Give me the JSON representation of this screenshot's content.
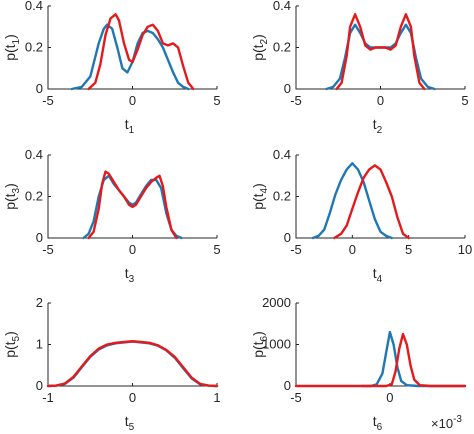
{
  "colors": {
    "blue": "#1f77b4",
    "red": "#e41a1c",
    "axis": "#262626"
  },
  "chart_data": [
    {
      "type": "line",
      "xlabel": "t",
      "xlabel_sub": "1",
      "ylabel": "p(t",
      "ylabel_sub": "1",
      "ylabel_close": ")",
      "xlim": [
        -5,
        5
      ],
      "ylim": [
        0,
        0.4
      ],
      "xticks": [
        "-5",
        "0",
        "5"
      ],
      "yticks": [
        "0",
        "0.2",
        "0.4"
      ],
      "grid": false,
      "series": [
        {
          "color": "blue",
          "x": [
            -3.6,
            -3,
            -2.5,
            -2,
            -1.7,
            -1.5,
            -1.2,
            -0.9,
            -0.6,
            -0.3,
            0,
            0.3,
            0.6,
            0.9,
            1.2,
            1.5,
            1.8,
            2.1,
            2.4,
            2.7,
            3,
            3.3
          ],
          "y": [
            0,
            0.01,
            0.06,
            0.22,
            0.29,
            0.31,
            0.29,
            0.2,
            0.1,
            0.08,
            0.13,
            0.22,
            0.27,
            0.28,
            0.27,
            0.24,
            0.2,
            0.14,
            0.08,
            0.03,
            0.01,
            0
          ]
        },
        {
          "color": "red",
          "x": [
            -2.6,
            -2.2,
            -1.9,
            -1.6,
            -1.3,
            -1,
            -0.8,
            -0.5,
            -0.2,
            0,
            0.3,
            0.6,
            0.9,
            1.2,
            1.5,
            1.8,
            2.1,
            2.4,
            2.7,
            3,
            3.3,
            3.6
          ],
          "y": [
            0,
            0.03,
            0.12,
            0.26,
            0.34,
            0.36,
            0.33,
            0.22,
            0.14,
            0.13,
            0.19,
            0.26,
            0.3,
            0.31,
            0.28,
            0.22,
            0.21,
            0.22,
            0.2,
            0.11,
            0.03,
            0
          ]
        }
      ]
    },
    {
      "type": "line",
      "xlabel": "t",
      "xlabel_sub": "2",
      "ylabel": "p(t",
      "ylabel_sub": "2",
      "ylabel_close": ")",
      "xlim": [
        -5,
        5
      ],
      "ylim": [
        0,
        0.4
      ],
      "xticks": [
        "-5",
        "0",
        "5"
      ],
      "yticks": [
        "0",
        "0.2",
        "0.4"
      ],
      "grid": false,
      "series": [
        {
          "color": "blue",
          "x": [
            -3.2,
            -2.8,
            -2.4,
            -2.1,
            -1.8,
            -1.5,
            -1.2,
            -0.9,
            -0.6,
            -0.3,
            0,
            0.3,
            0.6,
            0.9,
            1.2,
            1.5,
            1.8,
            2.1,
            2.4,
            2.8,
            3.2
          ],
          "y": [
            0,
            0.01,
            0.05,
            0.15,
            0.27,
            0.31,
            0.27,
            0.22,
            0.2,
            0.2,
            0.2,
            0.2,
            0.2,
            0.22,
            0.27,
            0.31,
            0.27,
            0.15,
            0.05,
            0.01,
            0
          ]
        },
        {
          "color": "red",
          "x": [
            -2.6,
            -2.3,
            -2,
            -1.8,
            -1.5,
            -1.2,
            -0.9,
            -0.6,
            -0.3,
            0,
            0.3,
            0.6,
            0.9,
            1.2,
            1.5,
            1.8,
            2,
            2.3,
            2.6
          ],
          "y": [
            0,
            0.03,
            0.16,
            0.3,
            0.36,
            0.3,
            0.21,
            0.19,
            0.2,
            0.2,
            0.2,
            0.19,
            0.21,
            0.3,
            0.36,
            0.3,
            0.16,
            0.03,
            0
          ]
        }
      ]
    },
    {
      "type": "line",
      "xlabel": "t",
      "xlabel_sub": "3",
      "ylabel": "p(t",
      "ylabel_sub": "3",
      "ylabel_close": ")",
      "xlim": [
        -5,
        5
      ],
      "ylim": [
        0,
        0.4
      ],
      "xticks": [
        "-5",
        "0",
        "5"
      ],
      "yticks": [
        "0",
        "0.2",
        "0.4"
      ],
      "grid": false,
      "series": [
        {
          "color": "blue",
          "x": [
            -2.9,
            -2.6,
            -2.3,
            -2,
            -1.7,
            -1.4,
            -1.1,
            -0.8,
            -0.5,
            -0.2,
            0,
            0.2,
            0.5,
            0.8,
            1.1,
            1.4,
            1.7,
            2,
            2.3,
            2.6,
            2.9
          ],
          "y": [
            0,
            0.02,
            0.08,
            0.2,
            0.28,
            0.3,
            0.26,
            0.23,
            0.2,
            0.17,
            0.16,
            0.17,
            0.21,
            0.25,
            0.28,
            0.28,
            0.24,
            0.12,
            0.04,
            0.01,
            0
          ]
        },
        {
          "color": "red",
          "x": [
            -2.6,
            -2.3,
            -2,
            -1.8,
            -1.6,
            -1.4,
            -1.1,
            -0.8,
            -0.5,
            -0.2,
            0,
            0.2,
            0.5,
            0.8,
            1.1,
            1.4,
            1.6,
            1.8,
            2,
            2.3,
            2.6
          ],
          "y": [
            0,
            0.03,
            0.14,
            0.26,
            0.32,
            0.31,
            0.27,
            0.23,
            0.2,
            0.16,
            0.15,
            0.16,
            0.2,
            0.24,
            0.27,
            0.29,
            0.3,
            0.25,
            0.15,
            0.04,
            0
          ]
        }
      ]
    },
    {
      "type": "line",
      "xlabel": "t",
      "xlabel_sub": "4",
      "ylabel": "p(t",
      "ylabel_sub": "4",
      "ylabel_close": ")",
      "xlim": [
        -5,
        10
      ],
      "ylim": [
        0,
        0.4
      ],
      "xticks": [
        "-5",
        "0",
        "5",
        "10"
      ],
      "yticks": [
        "0",
        "0.2",
        "0.4"
      ],
      "grid": false,
      "series": [
        {
          "color": "blue",
          "x": [
            -3.5,
            -3,
            -2.5,
            -2,
            -1.5,
            -1,
            -0.5,
            0,
            0.5,
            1,
            1.5,
            2,
            2.5,
            3,
            3.5
          ],
          "y": [
            0,
            0.01,
            0.04,
            0.12,
            0.21,
            0.28,
            0.33,
            0.36,
            0.33,
            0.27,
            0.18,
            0.09,
            0.03,
            0.01,
            0
          ]
        },
        {
          "color": "red",
          "x": [
            -1.6,
            -1,
            -0.5,
            0,
            0.5,
            1,
            1.5,
            2,
            2.5,
            3,
            3.5,
            4,
            4.5,
            5
          ],
          "y": [
            0,
            0.02,
            0.06,
            0.14,
            0.22,
            0.29,
            0.33,
            0.35,
            0.33,
            0.27,
            0.2,
            0.1,
            0.02,
            0
          ]
        }
      ]
    },
    {
      "type": "line",
      "xlabel": "t",
      "xlabel_sub": "5",
      "ylabel": "p(t",
      "ylabel_sub": "5",
      "ylabel_close": ")",
      "xlim": [
        -1,
        1
      ],
      "ylim": [
        0,
        2
      ],
      "xticks": [
        "-1",
        "0",
        "1"
      ],
      "yticks": [
        "0",
        "1",
        "2"
      ],
      "grid": false,
      "series": [
        {
          "color": "blue",
          "x": [
            -1,
            -0.9,
            -0.8,
            -0.7,
            -0.6,
            -0.5,
            -0.4,
            -0.3,
            -0.2,
            -0.1,
            0,
            0.1,
            0.2,
            0.3,
            0.4,
            0.5,
            0.6,
            0.7,
            0.8,
            0.9,
            1
          ],
          "y": [
            0,
            0.01,
            0.05,
            0.2,
            0.45,
            0.7,
            0.88,
            0.98,
            1.03,
            1.05,
            1.07,
            1.05,
            1.03,
            0.97,
            0.86,
            0.68,
            0.43,
            0.18,
            0.04,
            0.01,
            0
          ]
        },
        {
          "color": "red",
          "x": [
            -1,
            -0.9,
            -0.8,
            -0.7,
            -0.6,
            -0.5,
            -0.4,
            -0.3,
            -0.2,
            -0.1,
            0,
            0.1,
            0.2,
            0.3,
            0.4,
            0.5,
            0.6,
            0.7,
            0.8,
            0.9,
            1
          ],
          "y": [
            0,
            0.01,
            0.06,
            0.22,
            0.47,
            0.72,
            0.9,
            1,
            1.04,
            1.06,
            1.08,
            1.06,
            1.04,
            0.98,
            0.87,
            0.7,
            0.45,
            0.2,
            0.05,
            0.01,
            0
          ]
        }
      ]
    },
    {
      "type": "line",
      "xlabel": "t",
      "xlabel_sub": "6",
      "ylabel": "p(t",
      "ylabel_sub": "6",
      "ylabel_close": ")",
      "xlim": [
        -5,
        4
      ],
      "ylim": [
        0,
        2000
      ],
      "xticks": [
        "-5",
        "0",
        "5"
      ],
      "yticks": [
        "0",
        "1000",
        "2000"
      ],
      "grid": false,
      "x_scale_base": "×10",
      "x_scale_exp": "-3",
      "series": [
        {
          "color": "blue",
          "x": [
            -1.5,
            -1,
            -0.7,
            -0.4,
            -0.2,
            0,
            0.2,
            0.4,
            0.6,
            0.9,
            1.5,
            4
          ],
          "y": [
            0,
            0,
            40,
            300,
            800,
            1300,
            1000,
            450,
            120,
            20,
            0,
            0
          ]
        },
        {
          "color": "red",
          "x": [
            -5,
            -1,
            -0.2,
            0.1,
            0.3,
            0.5,
            0.7,
            0.9,
            1.1,
            1.3,
            1.6,
            2.2,
            4
          ],
          "y": [
            0,
            0,
            0,
            40,
            350,
            900,
            1250,
            1000,
            500,
            150,
            20,
            0,
            0
          ]
        }
      ]
    }
  ]
}
